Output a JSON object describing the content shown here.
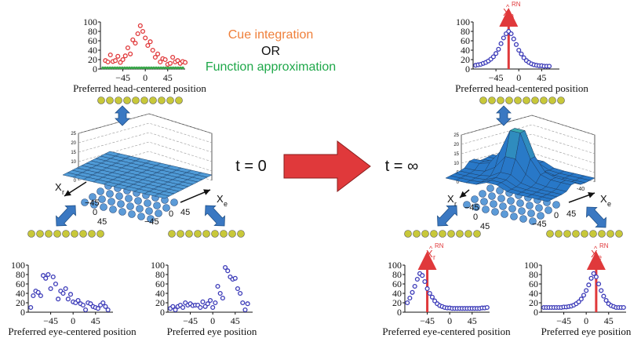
{
  "header": {
    "line1": "Cue integration",
    "line2": "OR",
    "line3": "Function approximation",
    "line1_color": "#ef7f3a",
    "line3_color": "#1fa84a"
  },
  "time_labels": {
    "left": "t = 0",
    "right": "t = ∞"
  },
  "captions": {
    "head": "Preferred head-centered position",
    "eye_centered": "Preferred eye-centered position",
    "eye": "Preferred eye position"
  },
  "y_ticks": [
    "100",
    "80",
    "60",
    "40",
    "20",
    "0"
  ],
  "x_ticks": [
    "−45",
    "0",
    "45"
  ],
  "surface_axes": {
    "xr": "X",
    "xr_sub": "r",
    "xe": "X",
    "xe_sub": "e",
    "ticks_r": [
      "−45",
      "0",
      "45"
    ],
    "ticks_e": [
      "−45",
      "0",
      "45"
    ],
    "z_ticks_small": [
      "25",
      "20",
      "15",
      "10",
      "5",
      "0"
    ],
    "right_small_label": "-40"
  },
  "estimates": {
    "xa": "X",
    "xa_sub": "a",
    "xr": "X",
    "xr_sub": "r",
    "xe": "X",
    "xe_sub": "e",
    "super": "RN",
    "hat": "^"
  },
  "colors": {
    "open_dots": "#3b3ab8",
    "red_dots": "#e0393b",
    "green_baseline": "#3aa64a",
    "red_line": "#e0393b",
    "arrow_blue": "#3a78c2",
    "node_yellow": "#c8c83a",
    "node_blue": "#5c9bd8",
    "big_arrow": "#e0393b"
  },
  "chart_data": [
    {
      "id": "head-t0",
      "type": "scatter",
      "ylim": [
        0,
        100
      ],
      "x": [
        -80,
        -75,
        -70,
        -65,
        -60,
        -55,
        -50,
        -45,
        -40,
        -35,
        -30,
        -25,
        -20,
        -15,
        -10,
        -5,
        0,
        5,
        10,
        15,
        20,
        25,
        30,
        35,
        40,
        45,
        50,
        55,
        60,
        65,
        70,
        75,
        80
      ],
      "y": [
        18,
        15,
        30,
        16,
        18,
        27,
        14,
        20,
        28,
        45,
        32,
        62,
        55,
        75,
        92,
        80,
        66,
        50,
        58,
        40,
        25,
        32,
        15,
        22,
        20,
        10,
        12,
        25,
        15,
        18,
        12,
        16,
        14
      ],
      "baseline_points": 34
    },
    {
      "id": "head-tinf",
      "type": "scatter",
      "ylim": [
        0,
        100
      ],
      "x": [
        -85,
        -80,
        -75,
        -70,
        -65,
        -60,
        -55,
        -50,
        -45,
        -40,
        -35,
        -30,
        -25,
        -20,
        -15,
        -10,
        -5,
        0,
        5,
        10,
        15,
        20,
        25,
        30,
        35,
        40,
        45,
        50,
        55,
        60
      ],
      "y": [
        8,
        9,
        10,
        12,
        14,
        17,
        21,
        26,
        33,
        42,
        54,
        66,
        75,
        80,
        75,
        64,
        52,
        40,
        32,
        24,
        18,
        14,
        11,
        9,
        8,
        7,
        7,
        6,
        6,
        6
      ],
      "estimate_x": -20
    },
    {
      "id": "eyecentered-t0",
      "type": "scatter",
      "ylim": [
        0,
        100
      ],
      "x": [
        -85,
        -80,
        -75,
        -70,
        -65,
        -60,
        -55,
        -50,
        -45,
        -40,
        -35,
        -30,
        -25,
        -20,
        -15,
        -10,
        -5,
        0,
        5,
        10,
        15,
        20,
        25,
        30,
        35,
        40,
        45,
        50,
        55,
        60,
        65,
        70
      ],
      "y": [
        10,
        35,
        45,
        42,
        35,
        78,
        72,
        80,
        50,
        75,
        60,
        28,
        45,
        40,
        50,
        28,
        38,
        22,
        20,
        25,
        18,
        15,
        5,
        20,
        18,
        12,
        10,
        8,
        15,
        20,
        12,
        5
      ]
    },
    {
      "id": "eye-t0",
      "type": "scatter",
      "ylim": [
        0,
        100
      ],
      "x": [
        -85,
        -80,
        -75,
        -70,
        -65,
        -60,
        -55,
        -50,
        -45,
        -40,
        -35,
        -30,
        -25,
        -20,
        -15,
        -10,
        -5,
        0,
        5,
        10,
        15,
        20,
        25,
        30,
        35,
        40,
        45,
        50,
        55,
        60,
        65,
        70
      ],
      "y": [
        8,
        12,
        5,
        12,
        15,
        10,
        20,
        15,
        18,
        14,
        15,
        15,
        10,
        22,
        12,
        18,
        25,
        10,
        20,
        55,
        40,
        30,
        95,
        88,
        75,
        70,
        72,
        50,
        40,
        20,
        5,
        18
      ]
    },
    {
      "id": "eyecentered-tinf",
      "type": "scatter",
      "ylim": [
        0,
        100
      ],
      "x": [
        -85,
        -80,
        -75,
        -70,
        -65,
        -60,
        -55,
        -50,
        -45,
        -40,
        -35,
        -30,
        -25,
        -20,
        -15,
        -10,
        -5,
        0,
        5,
        10,
        15,
        20,
        25,
        30,
        35,
        40,
        45,
        50,
        55,
        60,
        65,
        70,
        75
      ],
      "y": [
        20,
        30,
        42,
        55,
        70,
        82,
        78,
        65,
        50,
        40,
        32,
        24,
        18,
        14,
        12,
        10,
        9,
        9,
        8,
        8,
        8,
        8,
        8,
        8,
        8,
        8,
        8,
        8,
        8,
        8,
        9,
        9,
        10
      ],
      "estimate_x": -45
    },
    {
      "id": "eye-tinf",
      "type": "scatter",
      "ylim": [
        0,
        100
      ],
      "x": [
        -85,
        -80,
        -75,
        -70,
        -65,
        -60,
        -55,
        -50,
        -45,
        -40,
        -35,
        -30,
        -25,
        -20,
        -15,
        -10,
        -5,
        0,
        5,
        10,
        15,
        20,
        25,
        30,
        35,
        40,
        45,
        50,
        55,
        60,
        65,
        70,
        75
      ],
      "y": [
        10,
        10,
        10,
        10,
        10,
        10,
        10,
        10,
        11,
        11,
        12,
        13,
        15,
        18,
        22,
        28,
        36,
        46,
        58,
        72,
        82,
        75,
        60,
        46,
        34,
        25,
        18,
        14,
        12,
        10,
        10,
        10,
        10
      ],
      "estimate_x": 20
    }
  ]
}
